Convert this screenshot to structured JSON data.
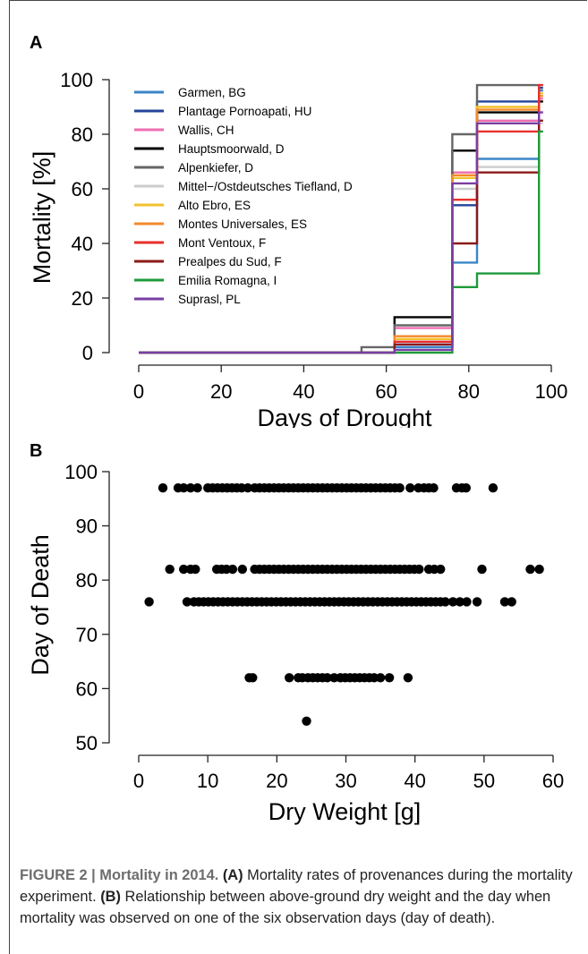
{
  "chart_data": [
    {
      "type": "line",
      "panel_label": "A",
      "xlabel": "Days of Drought",
      "ylabel": "Mortality [%]",
      "xlim": [
        0,
        100
      ],
      "ylim": [
        0,
        100
      ],
      "xticks": [
        "0",
        "20",
        "40",
        "60",
        "80",
        "100"
      ],
      "yticks": [
        "0",
        "20",
        "40",
        "60",
        "80",
        "100"
      ],
      "step": true,
      "legend_position": "top-left",
      "x": [
        0,
        54,
        62,
        76,
        82,
        97
      ],
      "series": [
        {
          "name": "Garmen, BG",
          "color": "#3b86c8",
          "values": [
            0,
            0,
            2,
            33,
            71,
            96
          ]
        },
        {
          "name": "Plantage Pornoapati, HU",
          "color": "#24449a",
          "values": [
            0,
            0,
            3,
            54,
            92,
            97
          ]
        },
        {
          "name": "Wallis, CH",
          "color": "#ee6eb0",
          "values": [
            0,
            0,
            9,
            66,
            85,
            93
          ]
        },
        {
          "name": "Hauptsmoorwald, D",
          "color": "#000000",
          "values": [
            0,
            0,
            13,
            74,
            88,
            92
          ]
        },
        {
          "name": "Alpenkiefer, D",
          "color": "#666666",
          "values": [
            0,
            2,
            10,
            80,
            98,
            98
          ]
        },
        {
          "name": "Mittel−/Ostdeutsches Tiefland, D",
          "color": "#cccccc",
          "values": [
            0,
            0,
            4,
            60,
            68,
            84
          ]
        },
        {
          "name": "Alto Ebro, ES",
          "color": "#f2c12e",
          "values": [
            0,
            0,
            5,
            64,
            90,
            95
          ]
        },
        {
          "name": "Montes Universales, ES",
          "color": "#f38a2b",
          "values": [
            0,
            0,
            6,
            65,
            89,
            94
          ]
        },
        {
          "name": "Mont Ventoux, F",
          "color": "#e8302e",
          "values": [
            0,
            0,
            4,
            56,
            81,
            98
          ]
        },
        {
          "name": "Prealpes du Sud, F",
          "color": "#8b1a1a",
          "values": [
            0,
            0,
            3,
            40,
            66,
            85
          ]
        },
        {
          "name": "Emilia Romagna, I",
          "color": "#1f9a3a",
          "values": [
            0,
            0,
            0,
            24,
            29,
            81
          ]
        },
        {
          "name": "Suprasl, PL",
          "color": "#7a3ea3",
          "values": [
            0,
            0,
            1,
            62,
            84,
            88
          ]
        }
      ]
    },
    {
      "type": "scatter",
      "panel_label": "B",
      "xlabel": "Dry Weight [g]",
      "ylabel": "Day of Death",
      "xlim": [
        0,
        60
      ],
      "ylim": [
        50,
        100
      ],
      "xticks": [
        "0",
        "10",
        "20",
        "30",
        "40",
        "50",
        "60"
      ],
      "yticks": [
        "50",
        "60",
        "70",
        "80",
        "90",
        "100"
      ],
      "color": "#000000",
      "points": [
        [
          1.5,
          76
        ],
        [
          7,
          76
        ],
        [
          8,
          76
        ],
        [
          8.7,
          76
        ],
        [
          9.4,
          76
        ],
        [
          10.1,
          76
        ],
        [
          10.8,
          76
        ],
        [
          11.5,
          76
        ],
        [
          12.2,
          76
        ],
        [
          12.9,
          76
        ],
        [
          13.6,
          76
        ],
        [
          14.3,
          76
        ],
        [
          15,
          76
        ],
        [
          15.7,
          76
        ],
        [
          16.4,
          76
        ],
        [
          17.1,
          76
        ],
        [
          17.8,
          76
        ],
        [
          18.5,
          76
        ],
        [
          19.2,
          76
        ],
        [
          19.9,
          76
        ],
        [
          20.6,
          76
        ],
        [
          21.3,
          76
        ],
        [
          22,
          76
        ],
        [
          22.7,
          76
        ],
        [
          23.4,
          76
        ],
        [
          24.1,
          76
        ],
        [
          24.8,
          76
        ],
        [
          25.5,
          76
        ],
        [
          26.2,
          76
        ],
        [
          26.9,
          76
        ],
        [
          27.6,
          76
        ],
        [
          28.3,
          76
        ],
        [
          29,
          76
        ],
        [
          29.7,
          76
        ],
        [
          30.4,
          76
        ],
        [
          31.1,
          76
        ],
        [
          31.8,
          76
        ],
        [
          32.5,
          76
        ],
        [
          33.2,
          76
        ],
        [
          33.9,
          76
        ],
        [
          34.6,
          76
        ],
        [
          35.3,
          76
        ],
        [
          36,
          76
        ],
        [
          36.7,
          76
        ],
        [
          37.4,
          76
        ],
        [
          38.1,
          76
        ],
        [
          38.8,
          76
        ],
        [
          39.5,
          76
        ],
        [
          40.2,
          76
        ],
        [
          40.9,
          76
        ],
        [
          41.6,
          76
        ],
        [
          42.3,
          76
        ],
        [
          43,
          76
        ],
        [
          43.7,
          76
        ],
        [
          44.4,
          76
        ],
        [
          45.5,
          76
        ],
        [
          46.5,
          76
        ],
        [
          47.5,
          76
        ],
        [
          49,
          76
        ],
        [
          53,
          76
        ],
        [
          54,
          76
        ],
        [
          4.5,
          82
        ],
        [
          6.5,
          82
        ],
        [
          7.5,
          82
        ],
        [
          8.2,
          82
        ],
        [
          11.3,
          82
        ],
        [
          12,
          82
        ],
        [
          12.7,
          82
        ],
        [
          13.6,
          82
        ],
        [
          15,
          82
        ],
        [
          16.8,
          82
        ],
        [
          17.5,
          82
        ],
        [
          18.2,
          82
        ],
        [
          18.9,
          82
        ],
        [
          19.6,
          82
        ],
        [
          20.3,
          82
        ],
        [
          21,
          82
        ],
        [
          21.7,
          82
        ],
        [
          22.4,
          82
        ],
        [
          23.1,
          82
        ],
        [
          23.8,
          82
        ],
        [
          24.5,
          82
        ],
        [
          25.2,
          82
        ],
        [
          25.9,
          82
        ],
        [
          26.6,
          82
        ],
        [
          27.3,
          82
        ],
        [
          28,
          82
        ],
        [
          28.7,
          82
        ],
        [
          29.4,
          82
        ],
        [
          30.1,
          82
        ],
        [
          30.8,
          82
        ],
        [
          31.5,
          82
        ],
        [
          32.2,
          82
        ],
        [
          32.9,
          82
        ],
        [
          33.6,
          82
        ],
        [
          34.3,
          82
        ],
        [
          35,
          82
        ],
        [
          35.7,
          82
        ],
        [
          36.4,
          82
        ],
        [
          37.1,
          82
        ],
        [
          37.8,
          82
        ],
        [
          38.5,
          82
        ],
        [
          39.2,
          82
        ],
        [
          39.9,
          82
        ],
        [
          40.6,
          82
        ],
        [
          42,
          82
        ],
        [
          42.8,
          82
        ],
        [
          43.7,
          82
        ],
        [
          49.7,
          82
        ],
        [
          56.7,
          82
        ],
        [
          58,
          82
        ],
        [
          3.5,
          97
        ],
        [
          5.7,
          97
        ],
        [
          6.5,
          97
        ],
        [
          7.5,
          97
        ],
        [
          8.5,
          97
        ],
        [
          10,
          97
        ],
        [
          10.7,
          97
        ],
        [
          11.4,
          97
        ],
        [
          12.1,
          97
        ],
        [
          12.8,
          97
        ],
        [
          13.5,
          97
        ],
        [
          14.2,
          97
        ],
        [
          14.9,
          97
        ],
        [
          15.8,
          97
        ],
        [
          16.8,
          97
        ],
        [
          17.5,
          97
        ],
        [
          18.2,
          97
        ],
        [
          18.9,
          97
        ],
        [
          19.6,
          97
        ],
        [
          20.3,
          97
        ],
        [
          21,
          97
        ],
        [
          21.7,
          97
        ],
        [
          22.4,
          97
        ],
        [
          23.1,
          97
        ],
        [
          23.8,
          97
        ],
        [
          24.5,
          97
        ],
        [
          25.2,
          97
        ],
        [
          25.9,
          97
        ],
        [
          26.6,
          97
        ],
        [
          27.3,
          97
        ],
        [
          28,
          97
        ],
        [
          28.7,
          97
        ],
        [
          29.4,
          97
        ],
        [
          30.1,
          97
        ],
        [
          30.8,
          97
        ],
        [
          31.5,
          97
        ],
        [
          32.2,
          97
        ],
        [
          32.9,
          97
        ],
        [
          33.6,
          97
        ],
        [
          34.3,
          97
        ],
        [
          35,
          97
        ],
        [
          35.7,
          97
        ],
        [
          36.4,
          97
        ],
        [
          37.1,
          97
        ],
        [
          37.8,
          97
        ],
        [
          39.3,
          97
        ],
        [
          40.5,
          97
        ],
        [
          41.3,
          97
        ],
        [
          42,
          97
        ],
        [
          42.7,
          97
        ],
        [
          46,
          97
        ],
        [
          46.8,
          97
        ],
        [
          47.4,
          97
        ],
        [
          51.3,
          97
        ],
        [
          16,
          62
        ],
        [
          16.5,
          62
        ],
        [
          21.8,
          62
        ],
        [
          23.1,
          62
        ],
        [
          23.7,
          62
        ],
        [
          24.5,
          62
        ],
        [
          25.2,
          62
        ],
        [
          25.9,
          62
        ],
        [
          26.6,
          62
        ],
        [
          27.3,
          62
        ],
        [
          28.3,
          62
        ],
        [
          29.2,
          62
        ],
        [
          29.9,
          62
        ],
        [
          30.6,
          62
        ],
        [
          31.3,
          62
        ],
        [
          32,
          62
        ],
        [
          32.7,
          62
        ],
        [
          33.4,
          62
        ],
        [
          34.1,
          62
        ],
        [
          35,
          62
        ],
        [
          36.3,
          62
        ],
        [
          39,
          62
        ],
        [
          24.3,
          54
        ]
      ]
    }
  ],
  "caption": {
    "figure_label": "FIGURE 2 | Mortality in 2014.",
    "part_a_label": "(A)",
    "part_a_text": " Mortality rates of provenances during the mortality experiment. ",
    "part_b_label": "(B)",
    "part_b_text": " Relationship between above-ground dry weight and the day when mortality was observed on one of the six observation days (day of death)."
  }
}
